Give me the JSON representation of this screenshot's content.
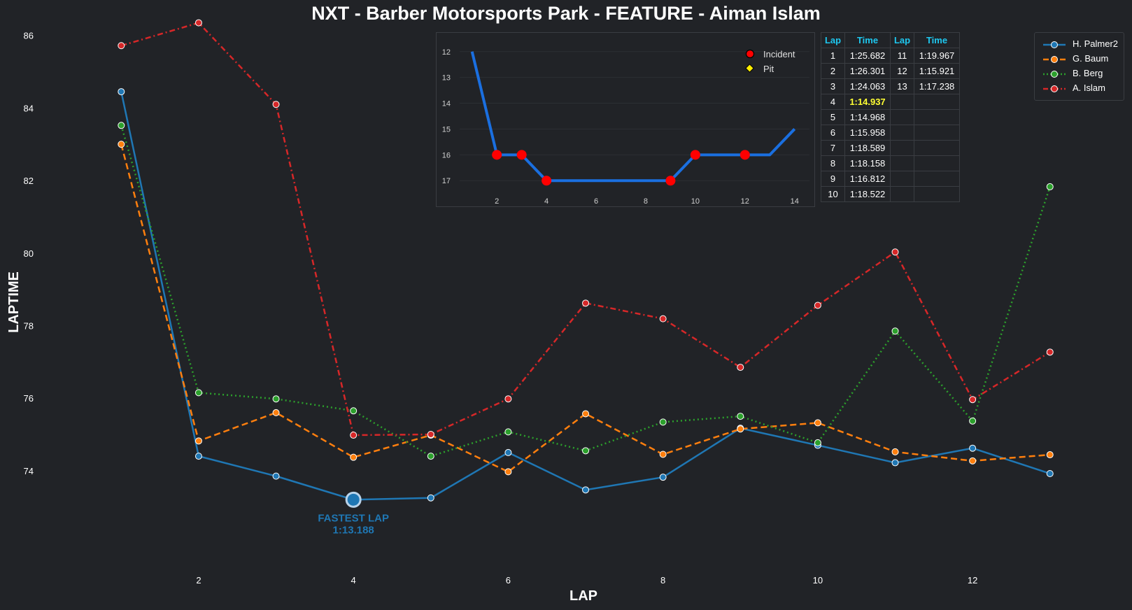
{
  "chart_data": [
    {
      "type": "line",
      "title": "NXT - Barber Motorsports Park - FEATURE - Aiman Islam",
      "xlabel": "LAP",
      "ylabel": "LAPTIME",
      "xlim": [
        0.5,
        13.4
      ],
      "ylim": [
        71.2,
        86.4
      ],
      "xticks": [
        2,
        4,
        6,
        8,
        10,
        12
      ],
      "yticks": [
        74,
        76,
        78,
        80,
        82,
        84,
        86
      ],
      "grid": false,
      "legend": "top-right",
      "x": [
        1,
        2,
        3,
        4,
        5,
        6,
        7,
        8,
        9,
        10,
        11,
        12,
        13
      ],
      "series": [
        {
          "name": "H. Palmer2",
          "color": "#1f77b4",
          "dash": "solid",
          "values": [
            84.45,
            74.4,
            73.85,
            73.2,
            73.25,
            74.5,
            73.47,
            73.82,
            75.17,
            74.7,
            74.22,
            74.62,
            73.92
          ]
        },
        {
          "name": "G. Baum",
          "color": "#ff7f0e",
          "dash": "dashed",
          "values": [
            83.0,
            74.82,
            75.6,
            74.37,
            74.98,
            73.97,
            75.57,
            74.45,
            75.15,
            75.32,
            74.52,
            74.27,
            74.44
          ]
        },
        {
          "name": "B. Berg",
          "color": "#2ca02c",
          "dash": "dotted",
          "values": [
            83.52,
            76.15,
            75.98,
            75.65,
            74.4,
            75.07,
            74.55,
            75.34,
            75.5,
            74.77,
            77.85,
            75.37,
            81.83
          ]
        },
        {
          "name": "A. Islam",
          "color": "#d62728",
          "dash": "dashdot",
          "values": [
            85.72,
            86.35,
            84.1,
            74.98,
            75.0,
            75.98,
            78.62,
            78.19,
            76.85,
            78.56,
            80.03,
            75.96,
            77.27
          ]
        }
      ],
      "annotation": {
        "label": "FASTEST LAP",
        "value": "1:13.188",
        "x": 4,
        "y": 73.2,
        "color": "#1f77b4"
      }
    },
    {
      "type": "line",
      "x": [
        1,
        2,
        3,
        4,
        5,
        6,
        7,
        8,
        9,
        10,
        11,
        12,
        13,
        14
      ],
      "values": [
        12,
        16,
        16,
        17,
        17,
        17,
        17,
        17,
        17,
        16,
        16,
        16,
        16,
        15
      ],
      "color": "#1a6fe0",
      "xlim": [
        0.5,
        14.6
      ],
      "ylim": [
        17.4,
        11.6
      ],
      "xticks": [
        2,
        4,
        6,
        8,
        10,
        12,
        14
      ],
      "yticks": [
        12,
        13,
        14,
        15,
        16,
        17
      ],
      "incidents_x": [
        2,
        3,
        4,
        9,
        10,
        12
      ],
      "pits_x": [],
      "legend": [
        "Incident",
        "Pit"
      ],
      "legend_colors": {
        "incident": "#ff0000",
        "pit": "#ffee00"
      }
    }
  ],
  "lap_table": {
    "headers": [
      "Lap",
      "Time",
      "Lap",
      "Time"
    ],
    "rows": [
      [
        "1",
        "1:25.682",
        "11",
        "1:19.967"
      ],
      [
        "2",
        "1:26.301",
        "12",
        "1:15.921"
      ],
      [
        "3",
        "1:24.063",
        "13",
        "1:17.238"
      ],
      [
        "4",
        "1:14.937",
        "",
        ""
      ],
      [
        "5",
        "1:14.968",
        "",
        ""
      ],
      [
        "6",
        "1:15.958",
        "",
        ""
      ],
      [
        "7",
        "1:18.589",
        "",
        ""
      ],
      [
        "8",
        "1:18.158",
        "",
        ""
      ],
      [
        "9",
        "1:16.812",
        "",
        ""
      ],
      [
        "10",
        "1:18.522",
        "",
        ""
      ]
    ],
    "best_row": 3
  }
}
